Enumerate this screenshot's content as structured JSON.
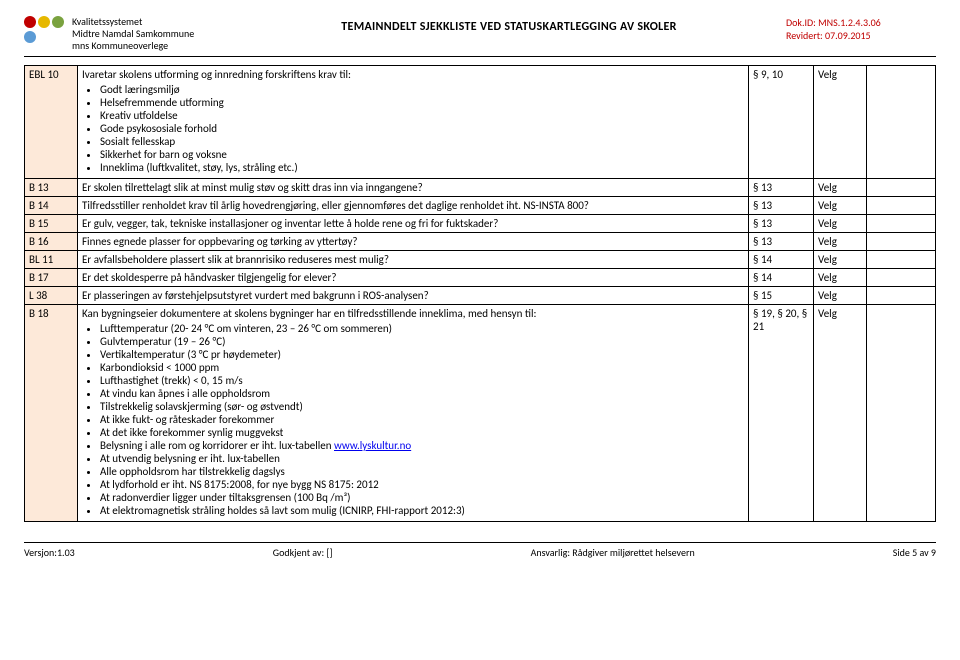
{
  "header": {
    "left_line1": "Kvalitetssystemet",
    "left_line2": "Midtre Namdal Samkommune",
    "left_line3": "mns Kommuneoverlege",
    "center": "TEMAINNDELT SJEKKLISTE VED STATUSKARTLEGGING AV SKOLER",
    "right_line1": "Dok.ID: MNS.1.2.4.3.06",
    "right_line2": "Revidert: 07.09.2015"
  },
  "logo_colors": [
    "#c00000",
    "#e6b800",
    "#7aa23f",
    "#5b9bd5"
  ],
  "rows": {
    "r0": {
      "code": "EBL 10",
      "intro": "Ivaretar skolens utforming og innredning forskriftens krav til:",
      "b1": "Godt læringsmiljø",
      "b2": "Helsefremmende utforming",
      "b3": "Kreativ utfoldelse",
      "b4": "Gode psykososiale forhold",
      "b5": "Sosialt fellesskap",
      "b6": "Sikkerhet for barn og voksne",
      "b7": "Inneklima (luftkvalitet, støy, lys, stråling etc.)",
      "ref": "§ 9, 10",
      "velg": "Velg"
    },
    "r1": {
      "code": "B 13",
      "desc": "Er skolen tilrettelagt slik at minst mulig støv og skitt dras inn via inngangene?",
      "ref": "§ 13",
      "velg": "Velg"
    },
    "r2": {
      "code": "B 14",
      "desc": "Tilfredsstiller renholdet krav til årlig hovedrengjøring, eller gjennomføres det daglige renholdet iht. NS-INSTA 800?",
      "ref": "§ 13",
      "velg": "Velg"
    },
    "r3": {
      "code": "B 15",
      "desc": "Er gulv, vegger, tak, tekniske installasjoner og inventar lette å holde rene og fri for fuktskader?",
      "ref": "§ 13",
      "velg": "Velg"
    },
    "r4": {
      "code": "B 16",
      "desc": "Finnes egnede plasser for oppbevaring og tørking av yttertøy?",
      "ref": "§ 13",
      "velg": "Velg"
    },
    "r5": {
      "code": "BL 11",
      "desc": "Er avfallsbeholdere plassert slik at brannrisiko reduseres mest mulig?",
      "ref": "§ 14",
      "velg": "Velg"
    },
    "r6": {
      "code": "B 17",
      "desc": "Er det skoldesperre på håndvasker tilgjengelig for elever?",
      "ref": "§ 14",
      "velg": "Velg"
    },
    "r7": {
      "code": "L 38",
      "desc": "Er plasseringen av førstehjelpsutstyret vurdert med bakgrunn i ROS-analysen?",
      "ref": "§ 15",
      "velg": "Velg"
    },
    "r8": {
      "code": "B 18",
      "intro": "Kan bygningseier dokumentere at skolens bygninger har en tilfredsstillende inneklima, med hensyn til:",
      "b1": "Lufttemperatur (20- 24 °C om vinteren, 23 – 26 °C om sommeren)",
      "b2": "Gulvtemperatur (19 – 26 °C)",
      "b3": "Vertikaltemperatur (3 °C pr høydemeter)",
      "b4": "Karbondioksid < 1000 ppm",
      "b5": "Lufthastighet (trekk) < 0, 15 m/s",
      "b6": "At vindu kan åpnes i alle oppholdsrom",
      "b7": "Tilstrekkelig solavskjerming (sør- og østvendt)",
      "b8": "At ikke fukt- og råteskader forekommer",
      "b9": "At det ikke forekommer synlig muggvekst",
      "b10_pre": "Belysning i alle rom og korridorer er iht. lux-tabellen ",
      "b10_link": "www.lyskultur.no",
      "b11": "At utvendig belysning er iht. lux-tabellen",
      "b12": "Alle oppholdsrom har tilstrekkelig dagslys",
      "b13": "At lydforhold er iht. NS 8175:2008, for nye bygg NS 8175: 2012",
      "b14": "At radonverdier ligger under tiltaksgrensen (100 Bq /m³)",
      "b15": "At elektromagnetisk stråling holdes så lavt som mulig (ICNIRP, FHI-rapport 2012:3)",
      "ref": "§ 19, § 20, § 21",
      "velg": "Velg"
    }
  },
  "footer": {
    "left": "Versjon:1.03",
    "center": "Godkjent av: []",
    "right_label": "Ansvarlig: Rådgiver miljørettet helsevern",
    "page": "Side 5 av 9"
  }
}
